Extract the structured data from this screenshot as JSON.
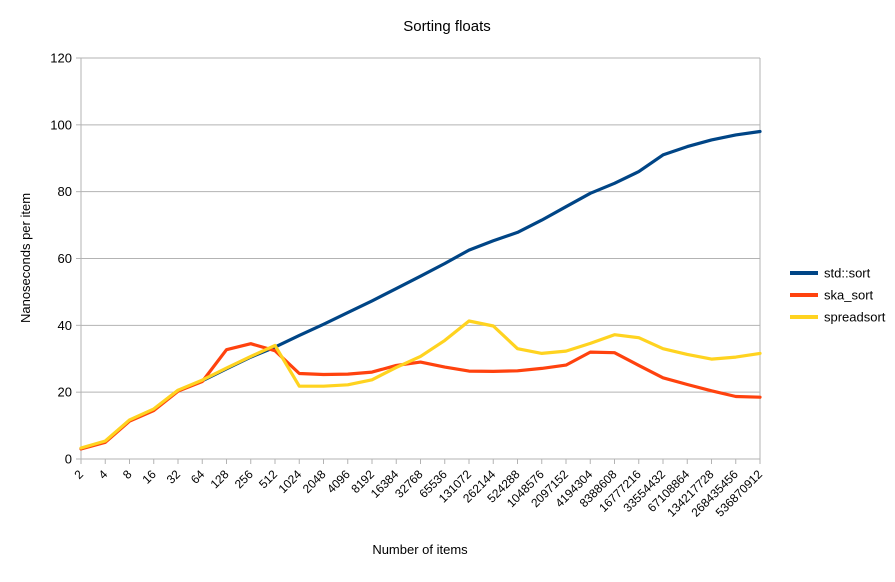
{
  "chart_data": {
    "type": "line",
    "title": "Sorting floats",
    "xlabel": "Number of items",
    "ylabel": "Nanoseconds per item",
    "ylim": [
      0,
      120
    ],
    "ytick_step": 20,
    "x_scale": "log2-categorical",
    "grid": "horizontal",
    "legend_position": "right",
    "categories": [
      "2",
      "4",
      "8",
      "16",
      "32",
      "64",
      "128",
      "256",
      "512",
      "1024",
      "2048",
      "4096",
      "8192",
      "16384",
      "32768",
      "65536",
      "131072",
      "262144",
      "524288",
      "1048576",
      "2097152",
      "4194304",
      "8388608",
      "16777216",
      "33554432",
      "67108864",
      "134217728",
      "268435456",
      "536870912"
    ],
    "series": [
      {
        "name": "std::sort",
        "color": "#004586",
        "values": [
          3.1,
          5.2,
          11.5,
          14.8,
          20.5,
          23.4,
          27.0,
          30.5,
          33.5,
          37.0,
          40.3,
          43.8,
          47.3,
          51.0,
          54.7,
          58.5,
          62.5,
          65.3,
          67.8,
          71.5,
          75.5,
          79.5,
          82.5,
          86.0,
          91.0,
          93.5,
          95.5,
          97.0,
          98.0
        ]
      },
      {
        "name": "ska_sort",
        "color": "#FF420E",
        "values": [
          3.0,
          5.0,
          11.3,
          14.5,
          20.3,
          23.2,
          32.7,
          34.5,
          32.4,
          25.6,
          25.3,
          25.4,
          26.0,
          28.0,
          29.0,
          27.5,
          26.3,
          26.2,
          26.4,
          27.1,
          28.1,
          32.0,
          31.8,
          28.0,
          24.3,
          22.3,
          20.4,
          18.7,
          18.5
        ]
      },
      {
        "name": "spreadsort",
        "color": "#FFD320",
        "values": [
          3.3,
          5.4,
          11.7,
          15.0,
          20.6,
          23.6,
          27.2,
          30.7,
          34.0,
          21.8,
          21.8,
          22.2,
          23.7,
          27.4,
          30.7,
          35.5,
          41.3,
          39.8,
          33.0,
          31.6,
          32.3,
          34.6,
          37.2,
          36.3,
          33.0,
          31.3,
          29.9,
          30.5,
          31.6
        ]
      }
    ],
    "colors": {
      "grid": "#b3b3b3",
      "axis": "#b3b3b3",
      "text": "#000000",
      "background": "#ffffff"
    }
  }
}
